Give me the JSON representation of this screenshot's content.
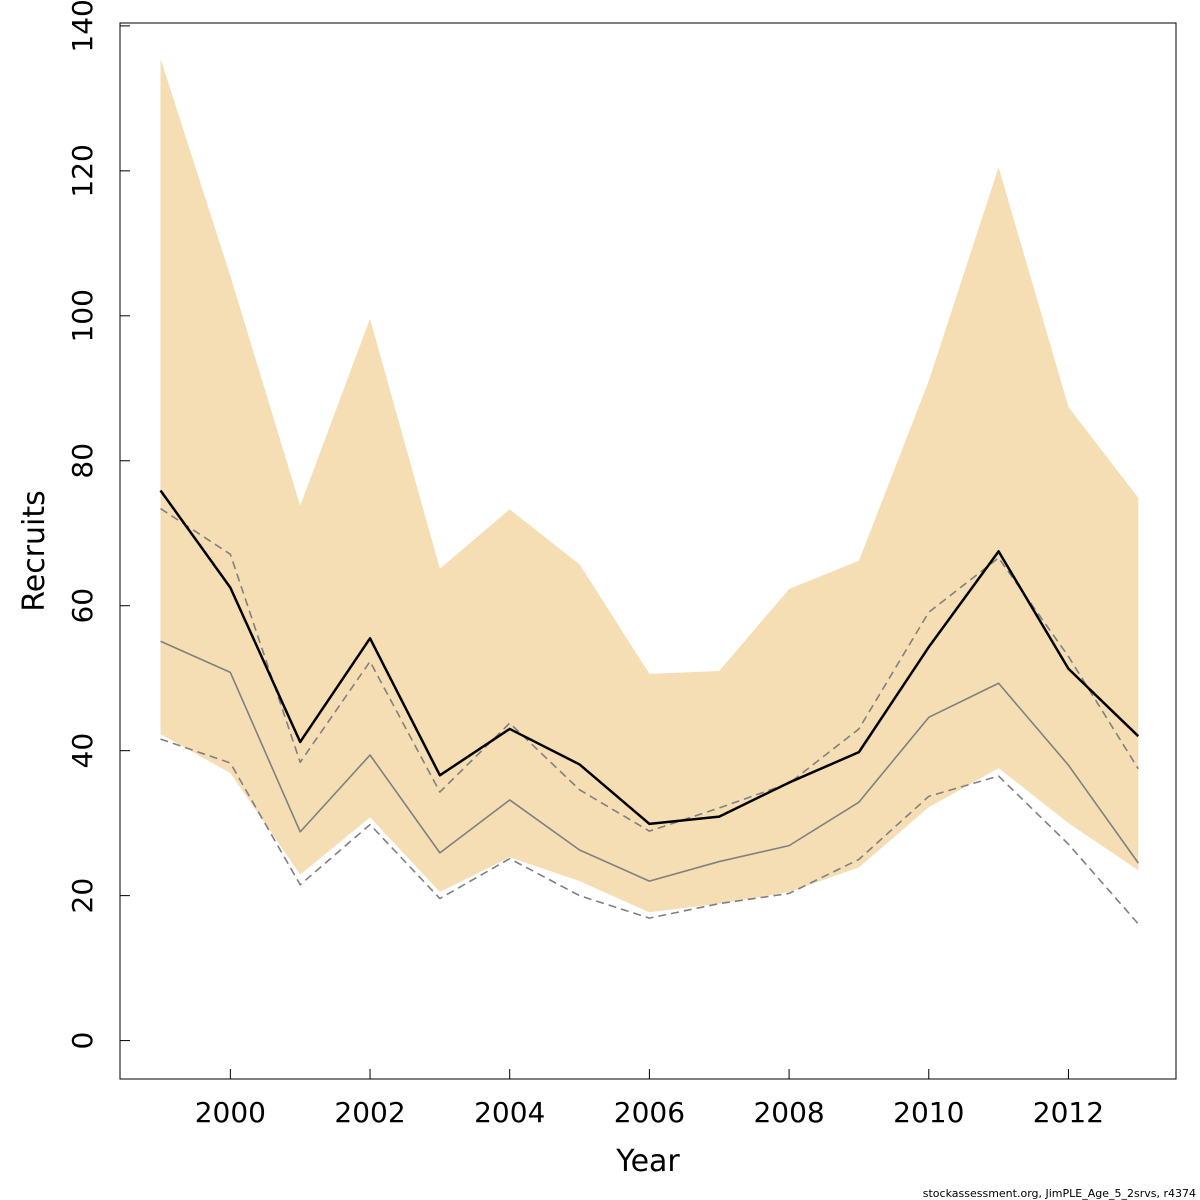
{
  "chart_data": {
    "type": "line",
    "title": "",
    "xlabel": "Year",
    "ylabel": "Recruits",
    "xlim": [
      1998.42,
      2013.54
    ],
    "ylim": [
      -5.3,
      140.4
    ],
    "x_ticks": [
      "2000",
      "2002",
      "2004",
      "2006",
      "2008",
      "2010",
      "2012"
    ],
    "x_tick_values": [
      2000,
      2002,
      2004,
      2006,
      2008,
      2010,
      2012
    ],
    "y_ticks": [
      "0",
      "20",
      "40",
      "60",
      "80",
      "100",
      "120",
      "140"
    ],
    "y_tick_values": [
      0,
      20,
      40,
      60,
      80,
      100,
      120,
      140
    ],
    "x": [
      1999,
      2000,
      2001,
      2002,
      2003,
      2004,
      2005,
      2006,
      2007,
      2008,
      2009,
      2010,
      2011,
      2012,
      2013
    ],
    "band": {
      "color": "#f5deb3",
      "upper": [
        135.5,
        105.5,
        73.8,
        99.6,
        65.1,
        73.3,
        65.7,
        50.6,
        51.0,
        62.3,
        66.2,
        91.0,
        120.5,
        87.4,
        74.9
      ],
      "lower": [
        42.3,
        36.9,
        22.9,
        30.8,
        20.5,
        25.3,
        22.0,
        17.7,
        18.9,
        20.5,
        23.9,
        32.2,
        37.6,
        30.0,
        23.5
      ]
    },
    "series": [
      {
        "color": "#000000",
        "dashed": false,
        "values": [
          75.9,
          62.5,
          41.2,
          55.5,
          36.6,
          43.0,
          38.1,
          29.9,
          30.9,
          35.6,
          39.8,
          54.3,
          67.5,
          51.3,
          42.0
        ]
      },
      {
        "color": "#808080",
        "dashed": false,
        "values": [
          55.1,
          50.8,
          28.8,
          39.4,
          25.9,
          33.2,
          26.3,
          22.0,
          24.7,
          26.9,
          32.9,
          44.6,
          49.3,
          38.0,
          24.5
        ]
      },
      {
        "color": "#808080",
        "dashed": true,
        "values": [
          73.4,
          67.1,
          38.4,
          52.3,
          34.3,
          43.8,
          34.6,
          28.9,
          32.1,
          35.5,
          43.0,
          59.1,
          66.6,
          53.0,
          37.5
        ]
      },
      {
        "color": "#808080",
        "dashed": true,
        "values": [
          41.6,
          38.3,
          21.5,
          29.8,
          19.6,
          25.1,
          20.0,
          16.9,
          18.9,
          20.3,
          25.0,
          33.7,
          36.5,
          27.1,
          16.1
        ]
      }
    ],
    "footer": "stockassessment.org, JimPLE_Age_5_2srvs, r4374"
  }
}
